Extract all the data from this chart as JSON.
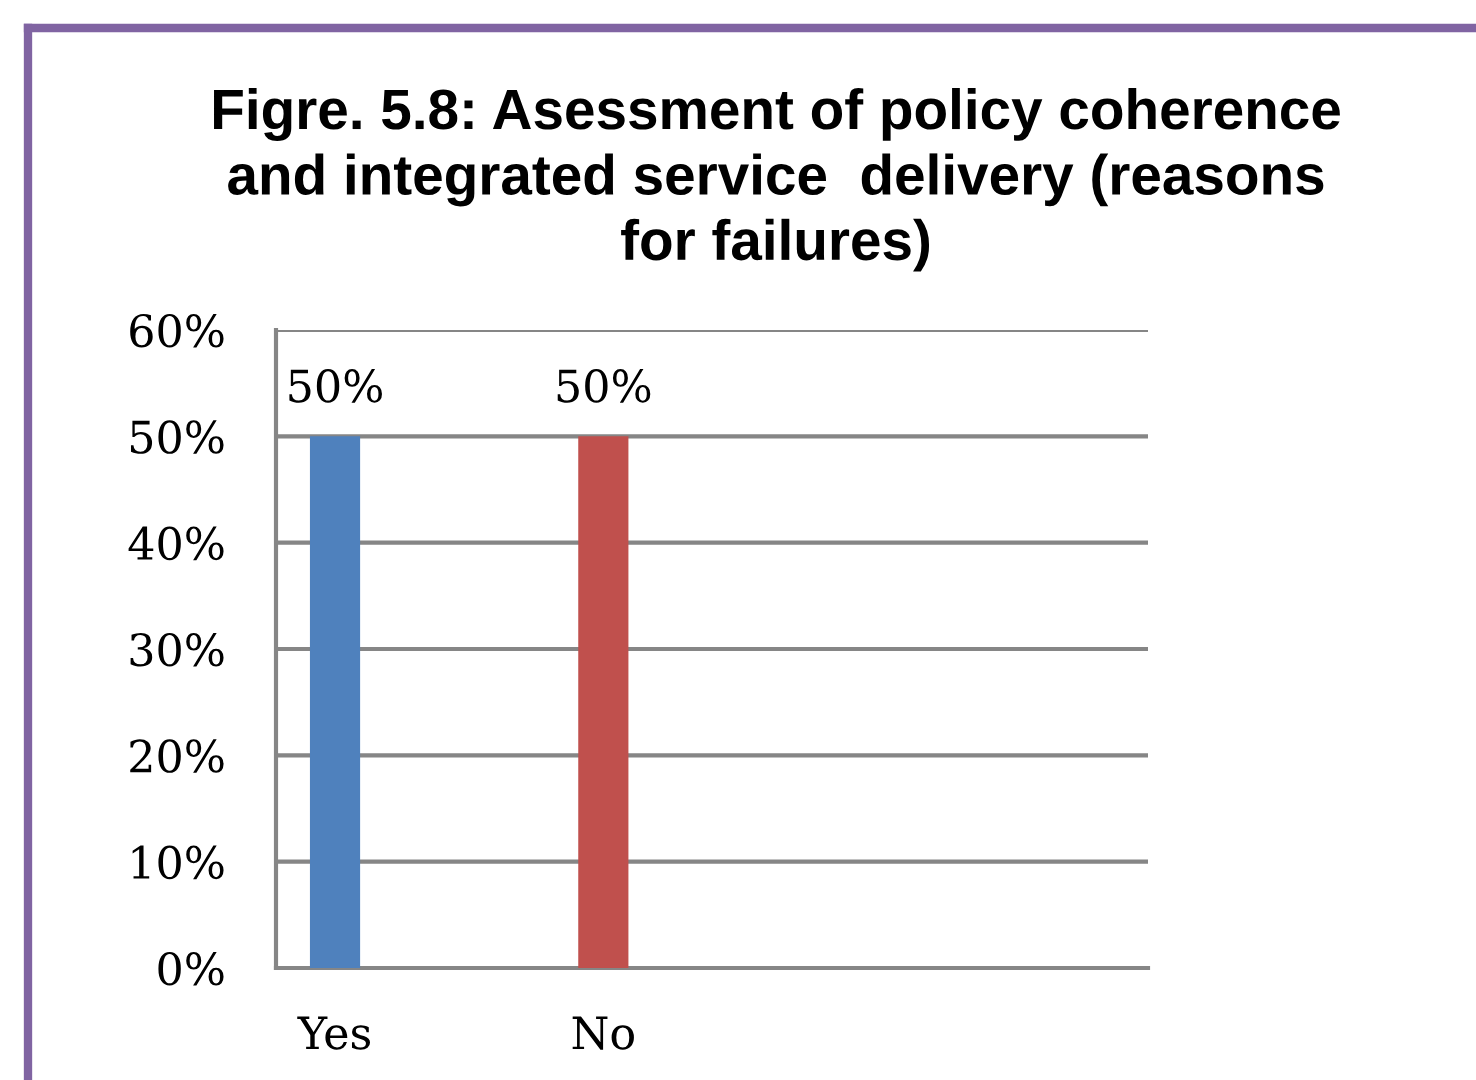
{
  "chart_data": {
    "type": "bar",
    "title": "Figre. 5.8: Asessment of policy coherence\nand integrated service  delivery (reasons\nfor failures)",
    "categories": [
      "Yes",
      "No"
    ],
    "values": [
      50,
      50
    ],
    "colors": [
      "#4f81bd",
      "#c0504d"
    ],
    "value_labels": [
      "50%",
      "50%"
    ],
    "ylim": [
      0,
      60
    ],
    "yticks": [
      {
        "value": 0,
        "label": "0%"
      },
      {
        "value": 10,
        "label": "10%"
      },
      {
        "value": 20,
        "label": "20%"
      },
      {
        "value": 30,
        "label": "30%"
      },
      {
        "value": 40,
        "label": "40%"
      },
      {
        "value": 50,
        "label": "50%"
      },
      {
        "value": 60,
        "label": "60%"
      }
    ],
    "grid": "y",
    "legend": false
  }
}
